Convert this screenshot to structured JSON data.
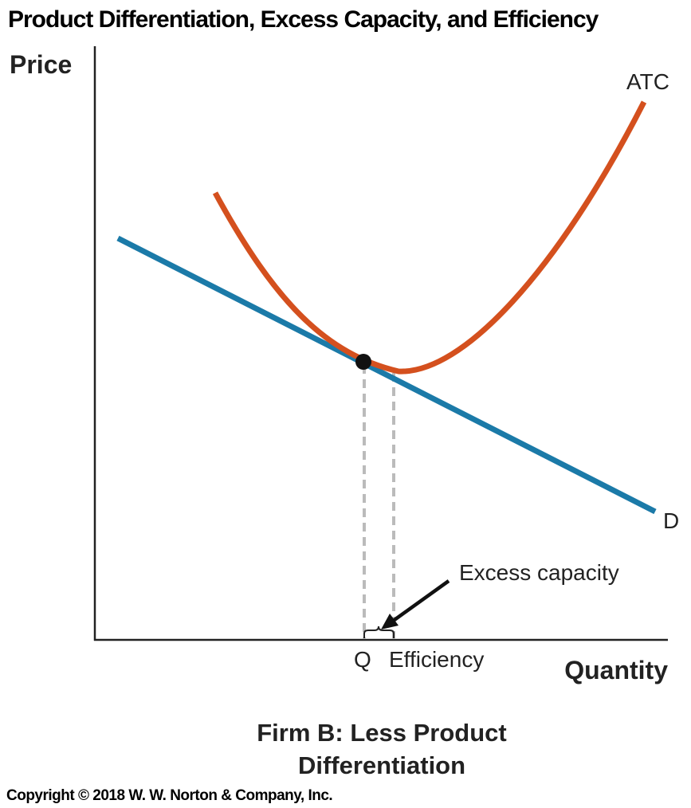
{
  "title": "Product Differentiation, Excess Capacity, and Efficiency",
  "axes": {
    "y_label": "Price",
    "x_label": "Quantity"
  },
  "curves": {
    "atc_label": "ATC",
    "demand_label": "D"
  },
  "annotations": {
    "excess_capacity": "Excess capacity",
    "q_label": "Q",
    "efficiency_label": "Efficiency"
  },
  "subtitle": {
    "line1": "Firm B: Less Product",
    "line2": "Differentiation"
  },
  "copyright": "Copyright © 2018 W. W. Norton & Company, Inc.",
  "colors": {
    "atc": "#d4501e",
    "demand": "#1b7aa8",
    "guide": "#bbbbbb",
    "axis": "#222222",
    "point": "#111111"
  }
}
